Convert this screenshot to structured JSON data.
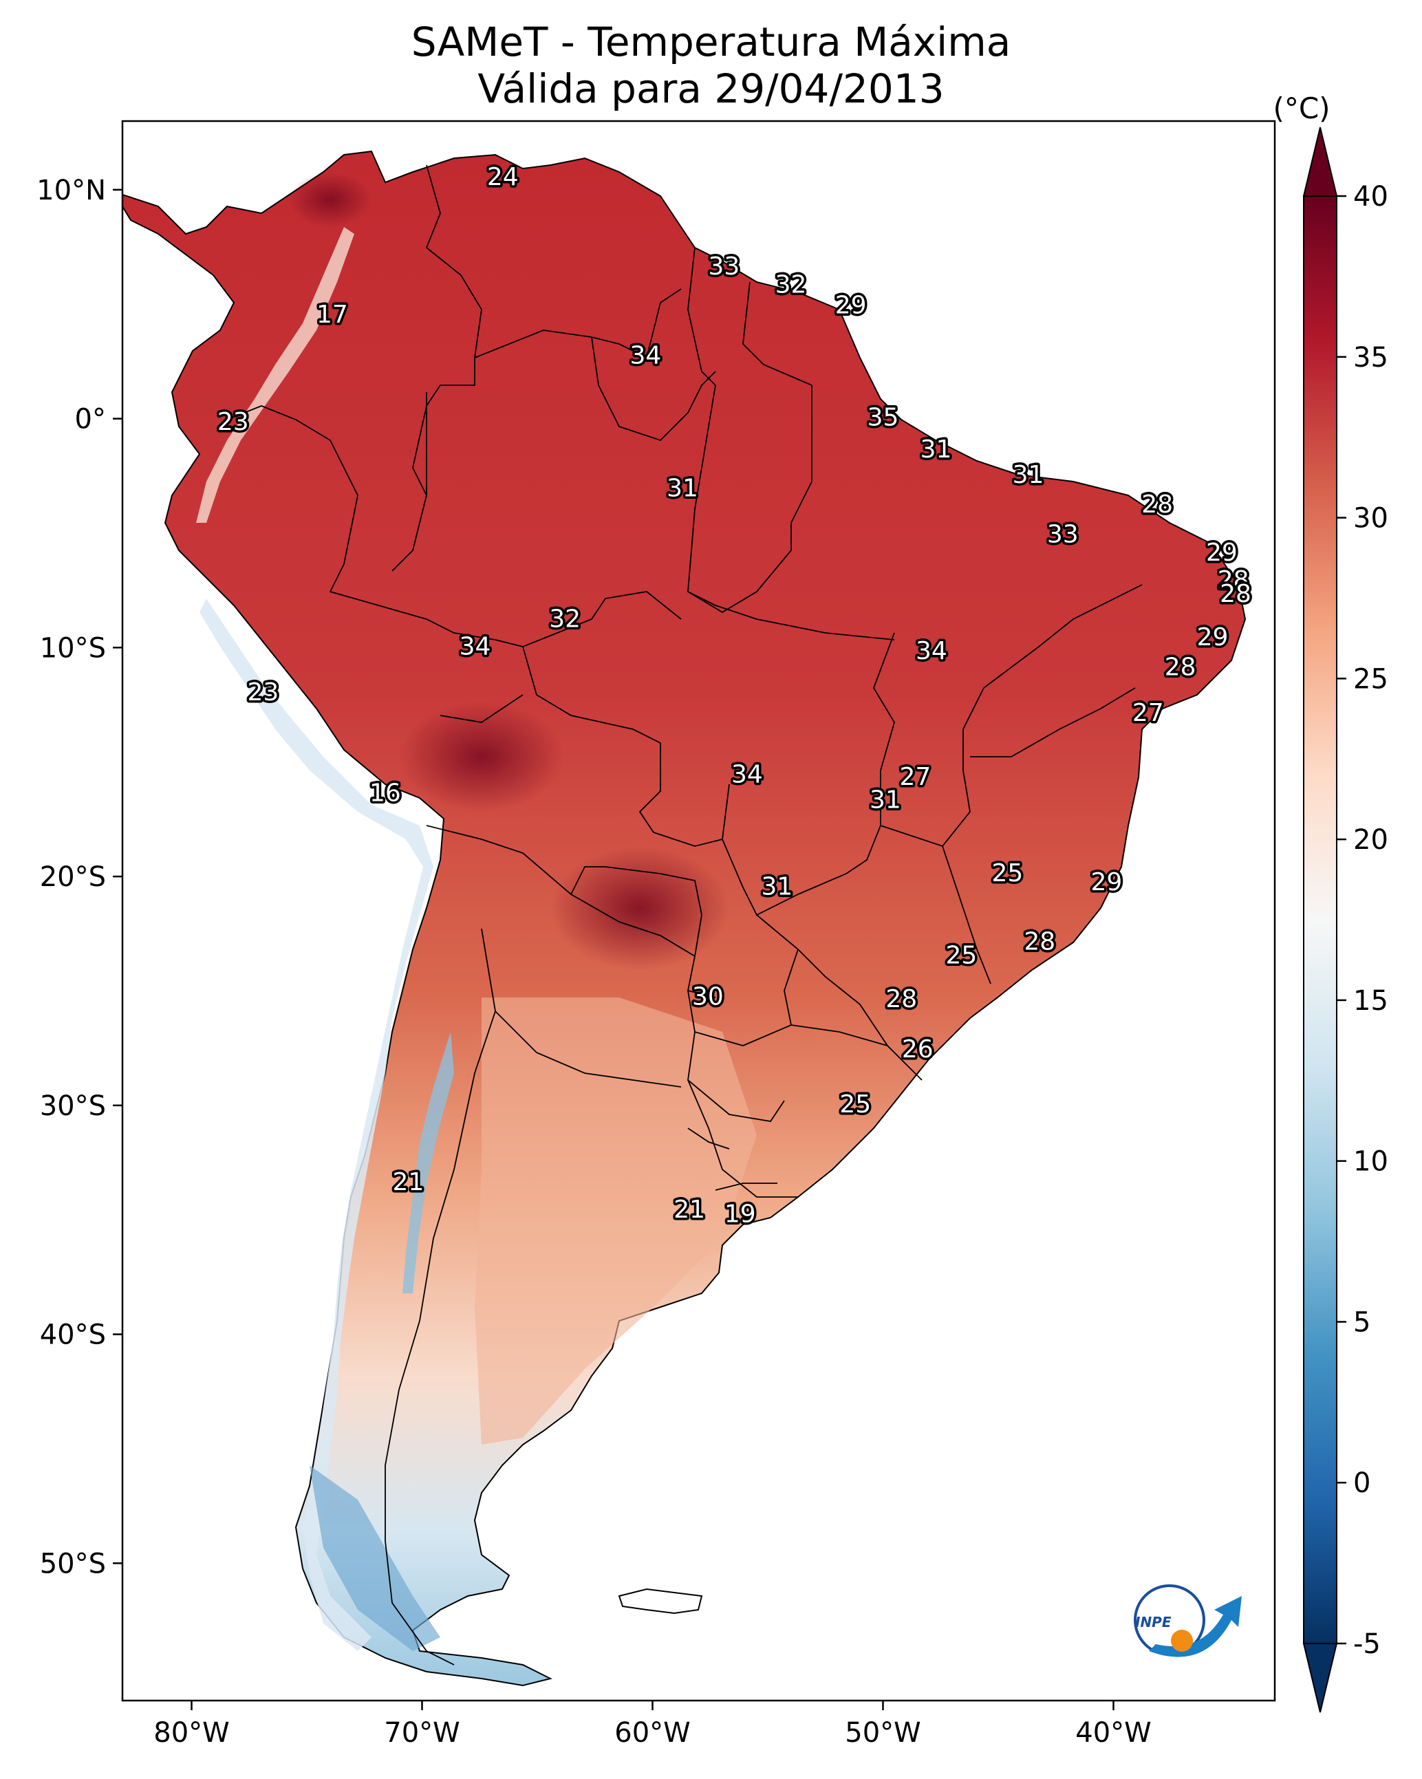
{
  "title": {
    "line1": "SAMeT - Temperatura Máxima",
    "line2": "Válida para 29/04/2013"
  },
  "map": {
    "lon_range": [
      -83,
      -33
    ],
    "lat_range": [
      -56,
      13
    ],
    "lat_ticks": [
      {
        "lat": 10,
        "label": "10°N"
      },
      {
        "lat": 0,
        "label": "0°"
      },
      {
        "lat": -10,
        "label": "10°S"
      },
      {
        "lat": -20,
        "label": "20°S"
      },
      {
        "lat": -30,
        "label": "30°S"
      },
      {
        "lat": -40,
        "label": "40°S"
      },
      {
        "lat": -50,
        "label": "50°S"
      }
    ],
    "lon_ticks": [
      {
        "lon": -80,
        "label": "80°W"
      },
      {
        "lon": -70,
        "label": "70°W"
      },
      {
        "lon": -60,
        "label": "60°W"
      },
      {
        "lon": -50,
        "label": "50°W"
      },
      {
        "lon": -40,
        "label": "40°W"
      }
    ]
  },
  "colorbar": {
    "unit": "(°C)",
    "min": -5,
    "max": 40,
    "ticks": [
      {
        "value": 40,
        "label": "40"
      },
      {
        "value": 35,
        "label": "35"
      },
      {
        "value": 30,
        "label": "30"
      },
      {
        "value": 25,
        "label": "25"
      },
      {
        "value": 20,
        "label": "20"
      },
      {
        "value": 15,
        "label": "15"
      },
      {
        "value": 10,
        "label": "10"
      },
      {
        "value": 5,
        "label": "5"
      },
      {
        "value": 0,
        "label": "0"
      },
      {
        "value": -5,
        "label": "-5"
      }
    ],
    "colors": [
      "#053061",
      "#2166ac",
      "#4393c3",
      "#92c5de",
      "#d1e5f0",
      "#f7f7f7",
      "#fddbc7",
      "#f4a582",
      "#d6604d",
      "#b2182b",
      "#67001f"
    ]
  },
  "station_values": [
    {
      "lon": -66.5,
      "lat": 10.5,
      "value": "24"
    },
    {
      "lon": -56.9,
      "lat": 6.6,
      "value": "33"
    },
    {
      "lon": -54.0,
      "lat": 5.8,
      "value": "32"
    },
    {
      "lon": -51.4,
      "lat": 4.9,
      "value": "29"
    },
    {
      "lon": -73.9,
      "lat": 4.5,
      "value": "17"
    },
    {
      "lon": -60.3,
      "lat": 2.7,
      "value": "34"
    },
    {
      "lon": -50.0,
      "lat": 0.0,
      "value": "35"
    },
    {
      "lon": -78.2,
      "lat": -0.2,
      "value": "23"
    },
    {
      "lon": -47.7,
      "lat": -1.4,
      "value": "31"
    },
    {
      "lon": -58.7,
      "lat": -3.1,
      "value": "31"
    },
    {
      "lon": -43.7,
      "lat": -2.5,
      "value": "31"
    },
    {
      "lon": -38.1,
      "lat": -3.8,
      "value": "28"
    },
    {
      "lon": -42.2,
      "lat": -5.1,
      "value": "33"
    },
    {
      "lon": -35.3,
      "lat": -5.9,
      "value": "29"
    },
    {
      "lon": -34.8,
      "lat": -7.1,
      "value": "28"
    },
    {
      "lon": -34.7,
      "lat": -7.7,
      "value": "28"
    },
    {
      "lon": -63.8,
      "lat": -8.8,
      "value": "32"
    },
    {
      "lon": -67.7,
      "lat": -10.0,
      "value": "34"
    },
    {
      "lon": -35.7,
      "lat": -9.6,
      "value": "29"
    },
    {
      "lon": -47.9,
      "lat": -10.2,
      "value": "34"
    },
    {
      "lon": -37.1,
      "lat": -10.9,
      "value": "28"
    },
    {
      "lon": -76.9,
      "lat": -12.0,
      "value": "23"
    },
    {
      "lon": -38.5,
      "lat": -12.9,
      "value": "27"
    },
    {
      "lon": -55.9,
      "lat": -15.6,
      "value": "34"
    },
    {
      "lon": -48.6,
      "lat": -15.7,
      "value": "27"
    },
    {
      "lon": -71.6,
      "lat": -16.4,
      "value": "16"
    },
    {
      "lon": -49.9,
      "lat": -16.7,
      "value": "31"
    },
    {
      "lon": -44.6,
      "lat": -19.9,
      "value": "25"
    },
    {
      "lon": -40.3,
      "lat": -20.3,
      "value": "29"
    },
    {
      "lon": -54.6,
      "lat": -20.5,
      "value": "31"
    },
    {
      "lon": -43.2,
      "lat": -22.9,
      "value": "28"
    },
    {
      "lon": -46.6,
      "lat": -23.5,
      "value": "25"
    },
    {
      "lon": -57.6,
      "lat": -25.3,
      "value": "30"
    },
    {
      "lon": -49.2,
      "lat": -25.4,
      "value": "28"
    },
    {
      "lon": -48.5,
      "lat": -27.6,
      "value": "26"
    },
    {
      "lon": -51.2,
      "lat": -30.0,
      "value": "25"
    },
    {
      "lon": -70.6,
      "lat": -33.4,
      "value": "21"
    },
    {
      "lon": -58.4,
      "lat": -34.6,
      "value": "21"
    },
    {
      "lon": -56.2,
      "lat": -34.8,
      "value": "19"
    }
  ],
  "logo": {
    "text": "INPE"
  }
}
